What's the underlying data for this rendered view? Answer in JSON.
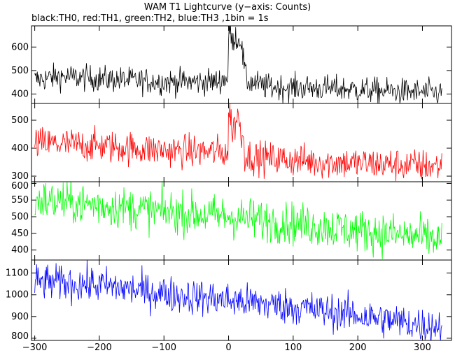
{
  "chart_data": {
    "type": "line",
    "title": "WAM T1 Lightcurve (y−axis: Counts)",
    "subtitle": "black:TH0, red:TH1, green:TH2, blue:TH3 ,1bin = 1s",
    "x_range": [
      -305,
      345
    ],
    "x_ticks": [
      -300,
      -200,
      -100,
      0,
      100,
      200,
      300
    ],
    "x_tick_labels": [
      "−300",
      "−200",
      "−100",
      "0",
      "100",
      "200",
      "300"
    ],
    "panels": [
      {
        "series_name": "TH0",
        "color": "#000000",
        "ylim": [
          360,
          690
        ],
        "yticks": [
          400,
          500,
          600
        ],
        "trend": [
          [
            -300,
            460
          ],
          [
            -260,
            475
          ],
          [
            -200,
            465
          ],
          [
            -100,
            452
          ],
          [
            -20,
            452
          ],
          [
            0,
            470
          ],
          [
            30,
            455
          ],
          [
            60,
            430
          ],
          [
            150,
            425
          ],
          [
            250,
            412
          ],
          [
            330,
            405
          ]
        ],
        "noise_amplitude": 28,
        "burst": [
          [
            0,
            630
          ],
          [
            3,
            680
          ],
          [
            6,
            600
          ],
          [
            10,
            660
          ],
          [
            14,
            620
          ],
          [
            18,
            650
          ],
          [
            22,
            560
          ],
          [
            26,
            490
          ]
        ]
      },
      {
        "series_name": "TH1",
        "color": "#ff0000",
        "ylim": [
          280,
          560
        ],
        "yticks": [
          300,
          400,
          500
        ],
        "trend": [
          [
            -300,
            418
          ],
          [
            -200,
            408
          ],
          [
            -100,
            392
          ],
          [
            0,
            385
          ],
          [
            50,
            365
          ],
          [
            150,
            350
          ],
          [
            250,
            342
          ],
          [
            330,
            335
          ]
        ],
        "noise_amplitude": 30,
        "burst": [
          [
            0,
            490
          ],
          [
            2,
            540
          ],
          [
            5,
            470
          ],
          [
            10,
            480
          ],
          [
            14,
            530
          ],
          [
            18,
            460
          ],
          [
            24,
            430
          ]
        ]
      },
      {
        "series_name": "TH2",
        "color": "#00ff00",
        "ylim": [
          370,
          605
        ],
        "yticks": [
          400,
          450,
          500,
          550,
          600
        ],
        "trend": [
          [
            -300,
            550
          ],
          [
            -200,
            535
          ],
          [
            -100,
            515
          ],
          [
            0,
            500
          ],
          [
            100,
            480
          ],
          [
            200,
            458
          ],
          [
            300,
            438
          ],
          [
            330,
            430
          ]
        ],
        "noise_amplitude": 32
      },
      {
        "series_name": "TH3",
        "color": "#0000ff",
        "ylim": [
          790,
          1160
        ],
        "yticks": [
          800,
          900,
          1000,
          1100
        ],
        "trend": [
          [
            -300,
            1060
          ],
          [
            -200,
            1045
          ],
          [
            -100,
            1005
          ],
          [
            0,
            975
          ],
          [
            100,
            945
          ],
          [
            200,
            905
          ],
          [
            300,
            860
          ],
          [
            330,
            855
          ]
        ],
        "noise_amplitude": 42
      }
    ]
  }
}
